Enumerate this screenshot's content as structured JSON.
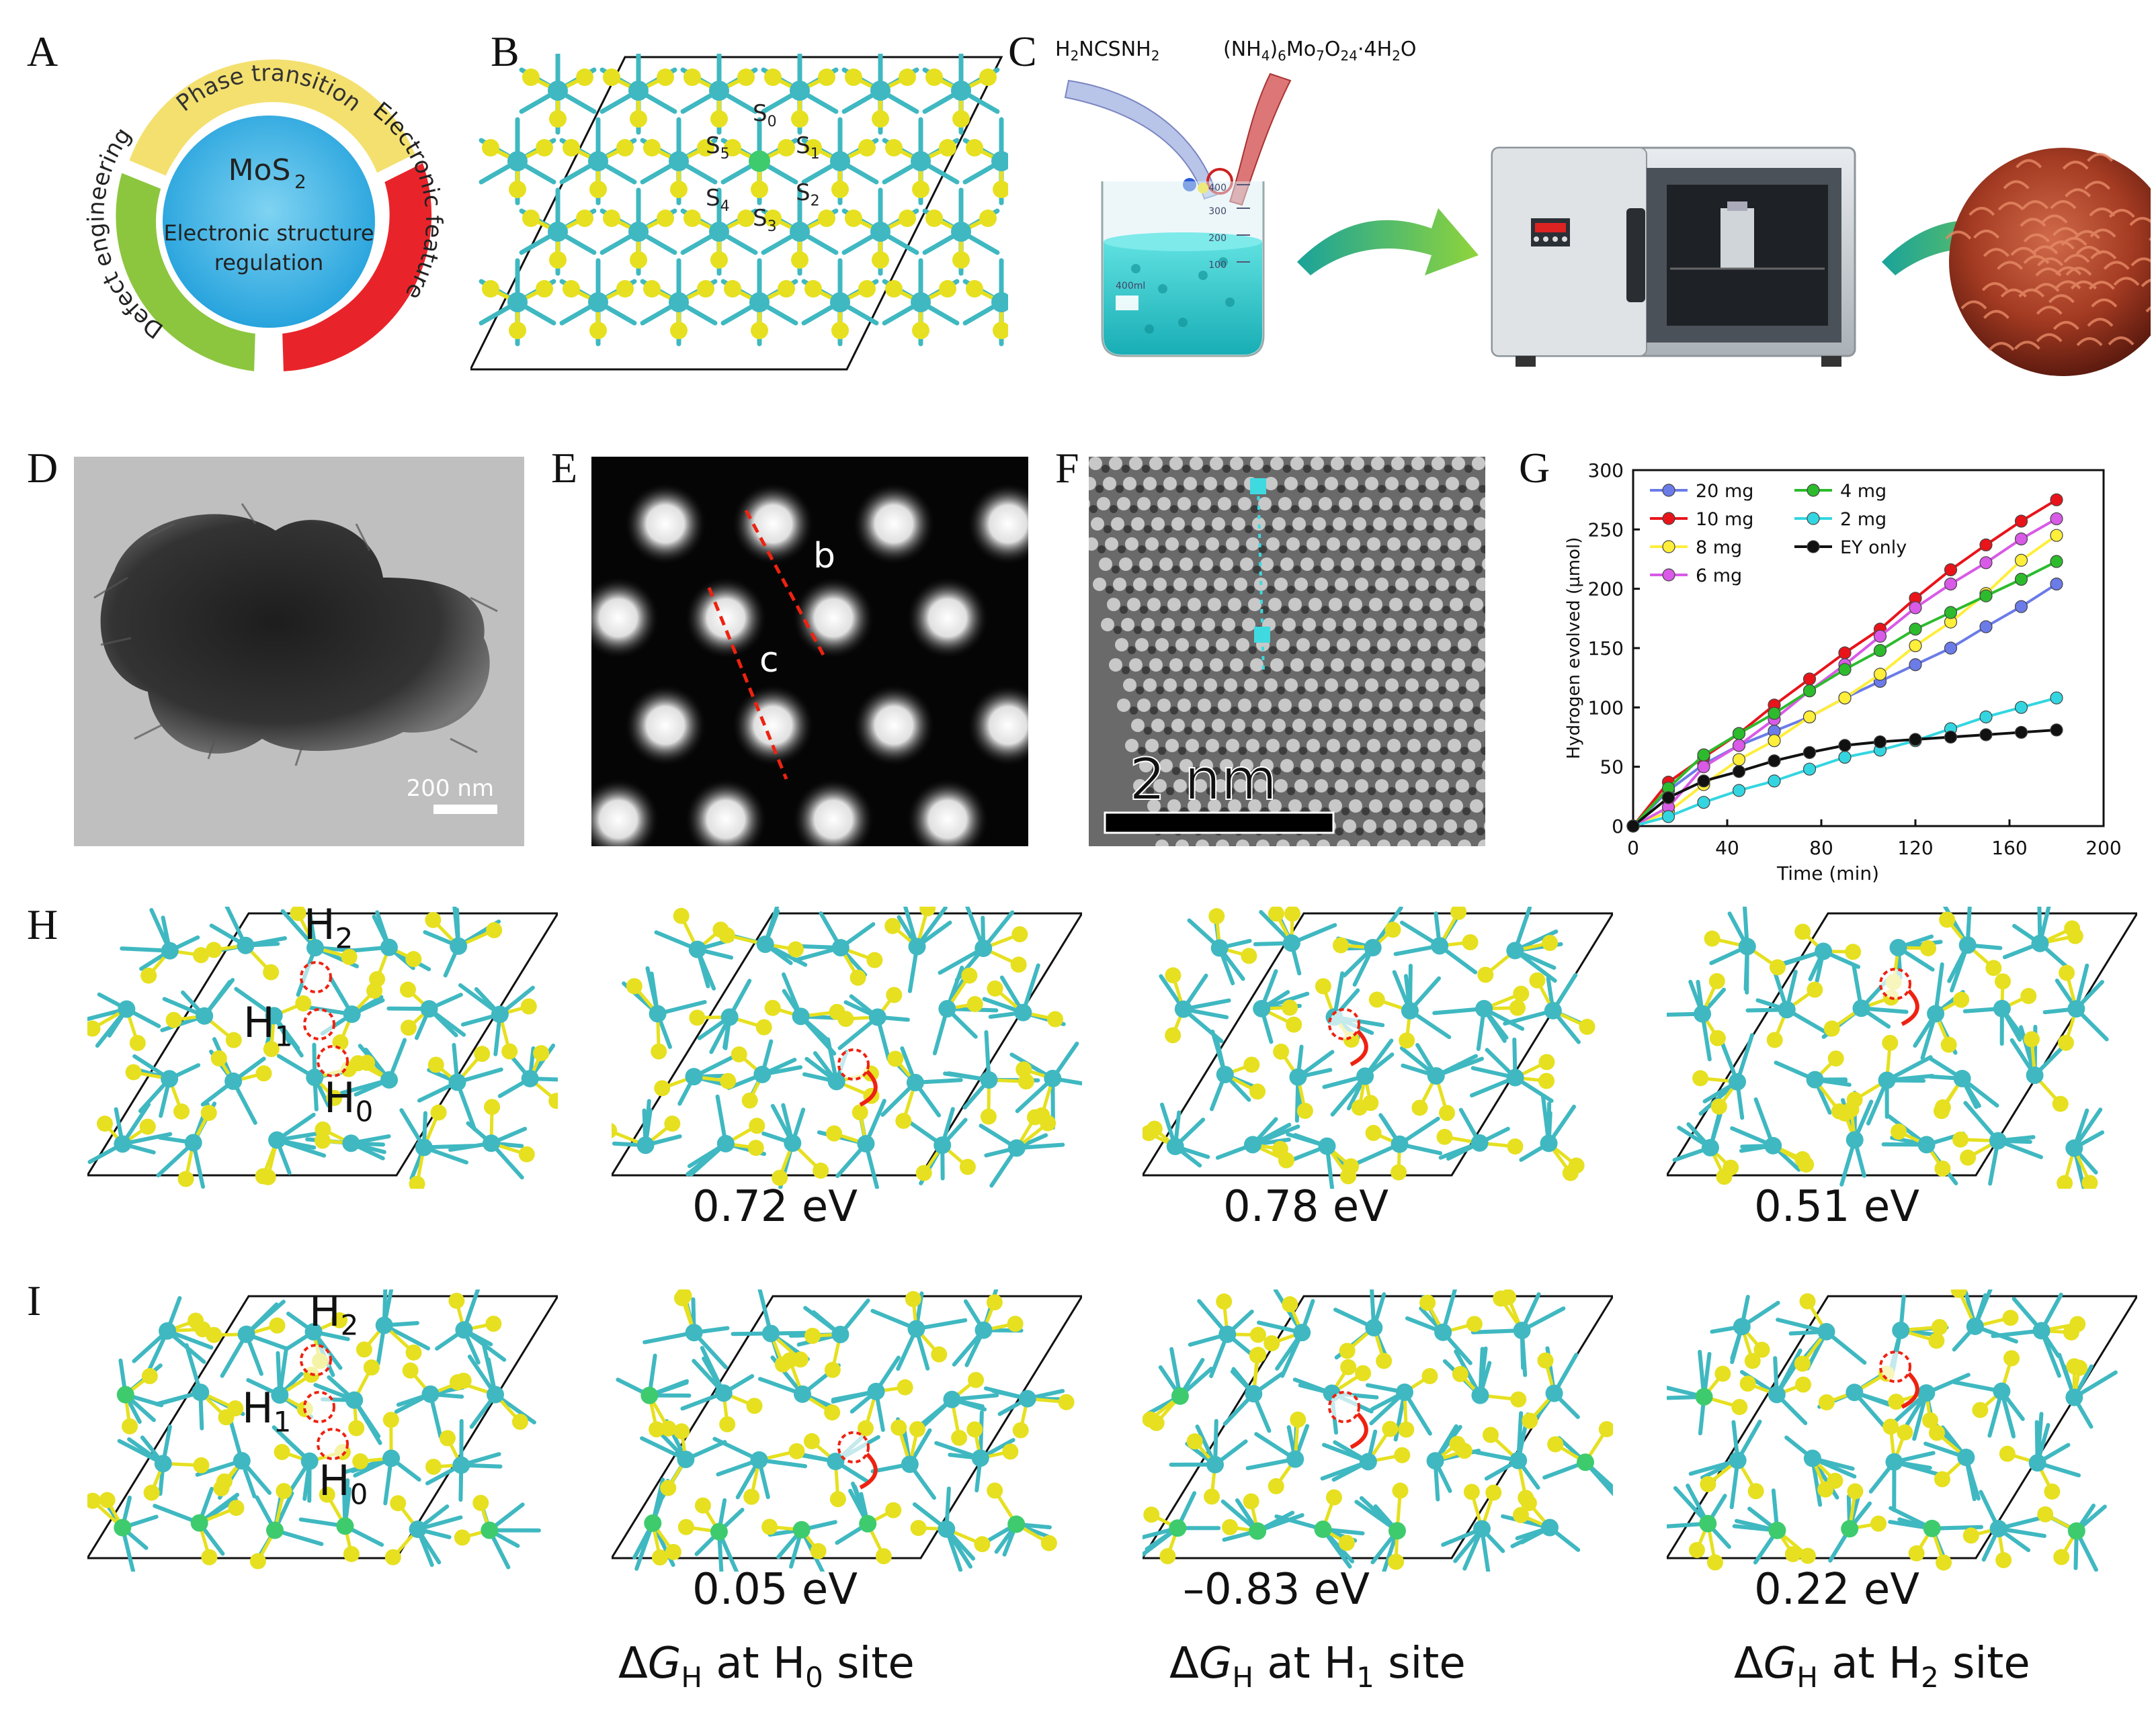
{
  "panel_labels": {
    "A": "A",
    "B": "B",
    "C": "C",
    "D": "D",
    "E": "E",
    "F": "F",
    "G": "G",
    "H": "H",
    "I": "I"
  },
  "panel_a": {
    "center_title": "MoS",
    "center_title_sub": "2",
    "center_subtitle_1": "Electronic structure",
    "center_subtitle_2": "regulation",
    "ring_top": "Phase transition",
    "ring_right": "Electronic feature",
    "ring_left": "Defect engineering",
    "colors": {
      "top": "#f4e06e",
      "right": "#e8242a",
      "left": "#8cc63f",
      "center": "#29a9e0"
    }
  },
  "panel_b": {
    "site_labels": [
      "S0",
      "S1",
      "S2",
      "S3",
      "S4",
      "S5"
    ],
    "colors": {
      "mo": "#3fb8c1",
      "s": "#e6e020",
      "dopant": "#3ecb6e"
    }
  },
  "panel_c": {
    "reagent_1": "H₂NCSNH₂",
    "reagent_2_parts": [
      "(NH",
      "4",
      ")",
      "6",
      "Mo",
      "7",
      "O",
      "24",
      "·4H",
      "2",
      "O"
    ],
    "beaker_marks": [
      "400",
      "300",
      "200",
      "100",
      "400ml"
    ]
  },
  "panel_d": {
    "scale_bar": "200 nm"
  },
  "panel_e": {
    "line_b": "b",
    "line_c": "c"
  },
  "panel_f": {
    "scale_bar": "2 nm"
  },
  "chart_data": {
    "type": "line",
    "xlabel": "Time (min)",
    "ylabel": "Hydrogen evolved (µmol)",
    "xlim": [
      0,
      200
    ],
    "ylim": [
      0,
      300
    ],
    "xticks": [
      0,
      40,
      80,
      120,
      160,
      200
    ],
    "yticks": [
      0,
      50,
      100,
      150,
      200,
      250,
      300
    ],
    "grid": false,
    "legend_placement": "top-left",
    "x": [
      0,
      15,
      30,
      45,
      60,
      75,
      90,
      105,
      120,
      135,
      150,
      165,
      180
    ],
    "series": [
      {
        "name": "20 mg",
        "color": "#6b7be8",
        "values": [
          0,
          30,
          52,
          68,
          80,
          92,
          108,
          122,
          136,
          150,
          168,
          185,
          204
        ]
      },
      {
        "name": "10 mg",
        "color": "#e8141a",
        "values": [
          0,
          37,
          58,
          78,
          102,
          124,
          146,
          166,
          192,
          216,
          237,
          257,
          275
        ]
      },
      {
        "name": "8 mg",
        "color": "#ffee3a",
        "values": [
          0,
          12,
          35,
          56,
          72,
          92,
          108,
          128,
          152,
          172,
          196,
          224,
          245
        ]
      },
      {
        "name": "6 mg",
        "color": "#d85ae6",
        "values": [
          0,
          16,
          50,
          68,
          90,
          114,
          136,
          160,
          184,
          204,
          222,
          242,
          259
        ]
      },
      {
        "name": "4 mg",
        "color": "#2dbb2d",
        "values": [
          0,
          32,
          60,
          78,
          95,
          114,
          132,
          148,
          166,
          180,
          194,
          208,
          223
        ]
      },
      {
        "name": "2 mg",
        "color": "#33d6e0",
        "values": [
          0,
          8,
          20,
          30,
          38,
          48,
          58,
          64,
          72,
          82,
          92,
          100,
          108
        ]
      },
      {
        "name": "EY only",
        "color": "#111111",
        "values": [
          0,
          24,
          38,
          46,
          55,
          62,
          68,
          71,
          73,
          75,
          77,
          79,
          81
        ]
      }
    ]
  },
  "panel_h": {
    "labels": {
      "h2": "H",
      "h1": "H",
      "h0": "H",
      "h2_sub": "2",
      "h1_sub": "1",
      "h0_sub": "0"
    },
    "energies": [
      "0.72 eV",
      "0.78 eV",
      "0.51 eV"
    ]
  },
  "panel_i": {
    "labels": {
      "h2": "H",
      "h1": "H",
      "h0": "H",
      "h2_sub": "2",
      "h1_sub": "1",
      "h0_sub": "0"
    },
    "energies": [
      "0.05 eV",
      "–0.83 eV",
      "0.22 eV"
    ],
    "captions": [
      {
        "pre": "Δ",
        "g": "G",
        "gsub": "H",
        "mid": " at H",
        "site": "0",
        "post": " site"
      },
      {
        "pre": "Δ",
        "g": "G",
        "gsub": "H",
        "mid": " at H",
        "site": "1",
        "post": " site"
      },
      {
        "pre": "Δ",
        "g": "G",
        "gsub": "H",
        "mid": " at H",
        "site": "2",
        "post": " site"
      }
    ]
  }
}
